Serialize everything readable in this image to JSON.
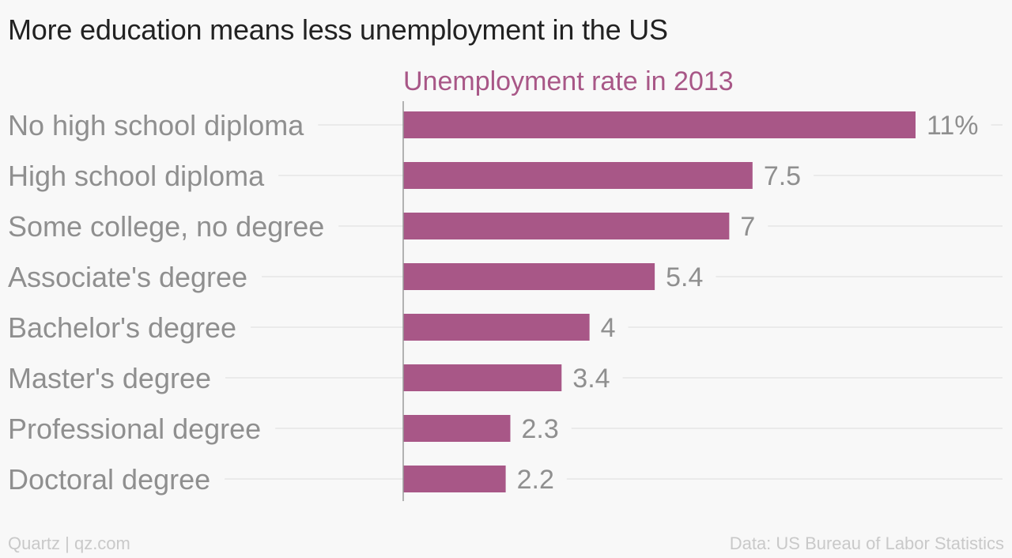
{
  "header": {
    "title": "More education means less unemployment in the US"
  },
  "footer": {
    "credit": "Quartz | qz.com",
    "source": "Data: US Bureau of Labor Statistics"
  },
  "colors": {
    "bar": "#a85787",
    "series_label": "#a85787",
    "category_text": "#8f8f8f",
    "value_text": "#8f8f8f",
    "gridline": "#e6e6e6",
    "axis": "#9a9a9a"
  },
  "chart_data": {
    "type": "bar",
    "orientation": "horizontal",
    "series_label": "Unemployment rate in 2013",
    "categories": [
      "No high school diploma",
      "High school diploma",
      "Some college, no degree",
      "Associate's degree",
      "Bachelor's degree",
      "Master's degree",
      "Professional degree",
      "Doctoral degree"
    ],
    "values": [
      11,
      7.5,
      7,
      5.4,
      4,
      3.4,
      2.3,
      2.2
    ],
    "value_labels": [
      "11%",
      "7.5",
      "7",
      "5.4",
      "4",
      "3.4",
      "2.3",
      "2.2"
    ],
    "unit": "%",
    "xlim": [
      0,
      11
    ],
    "grid": true,
    "legend": "none"
  }
}
